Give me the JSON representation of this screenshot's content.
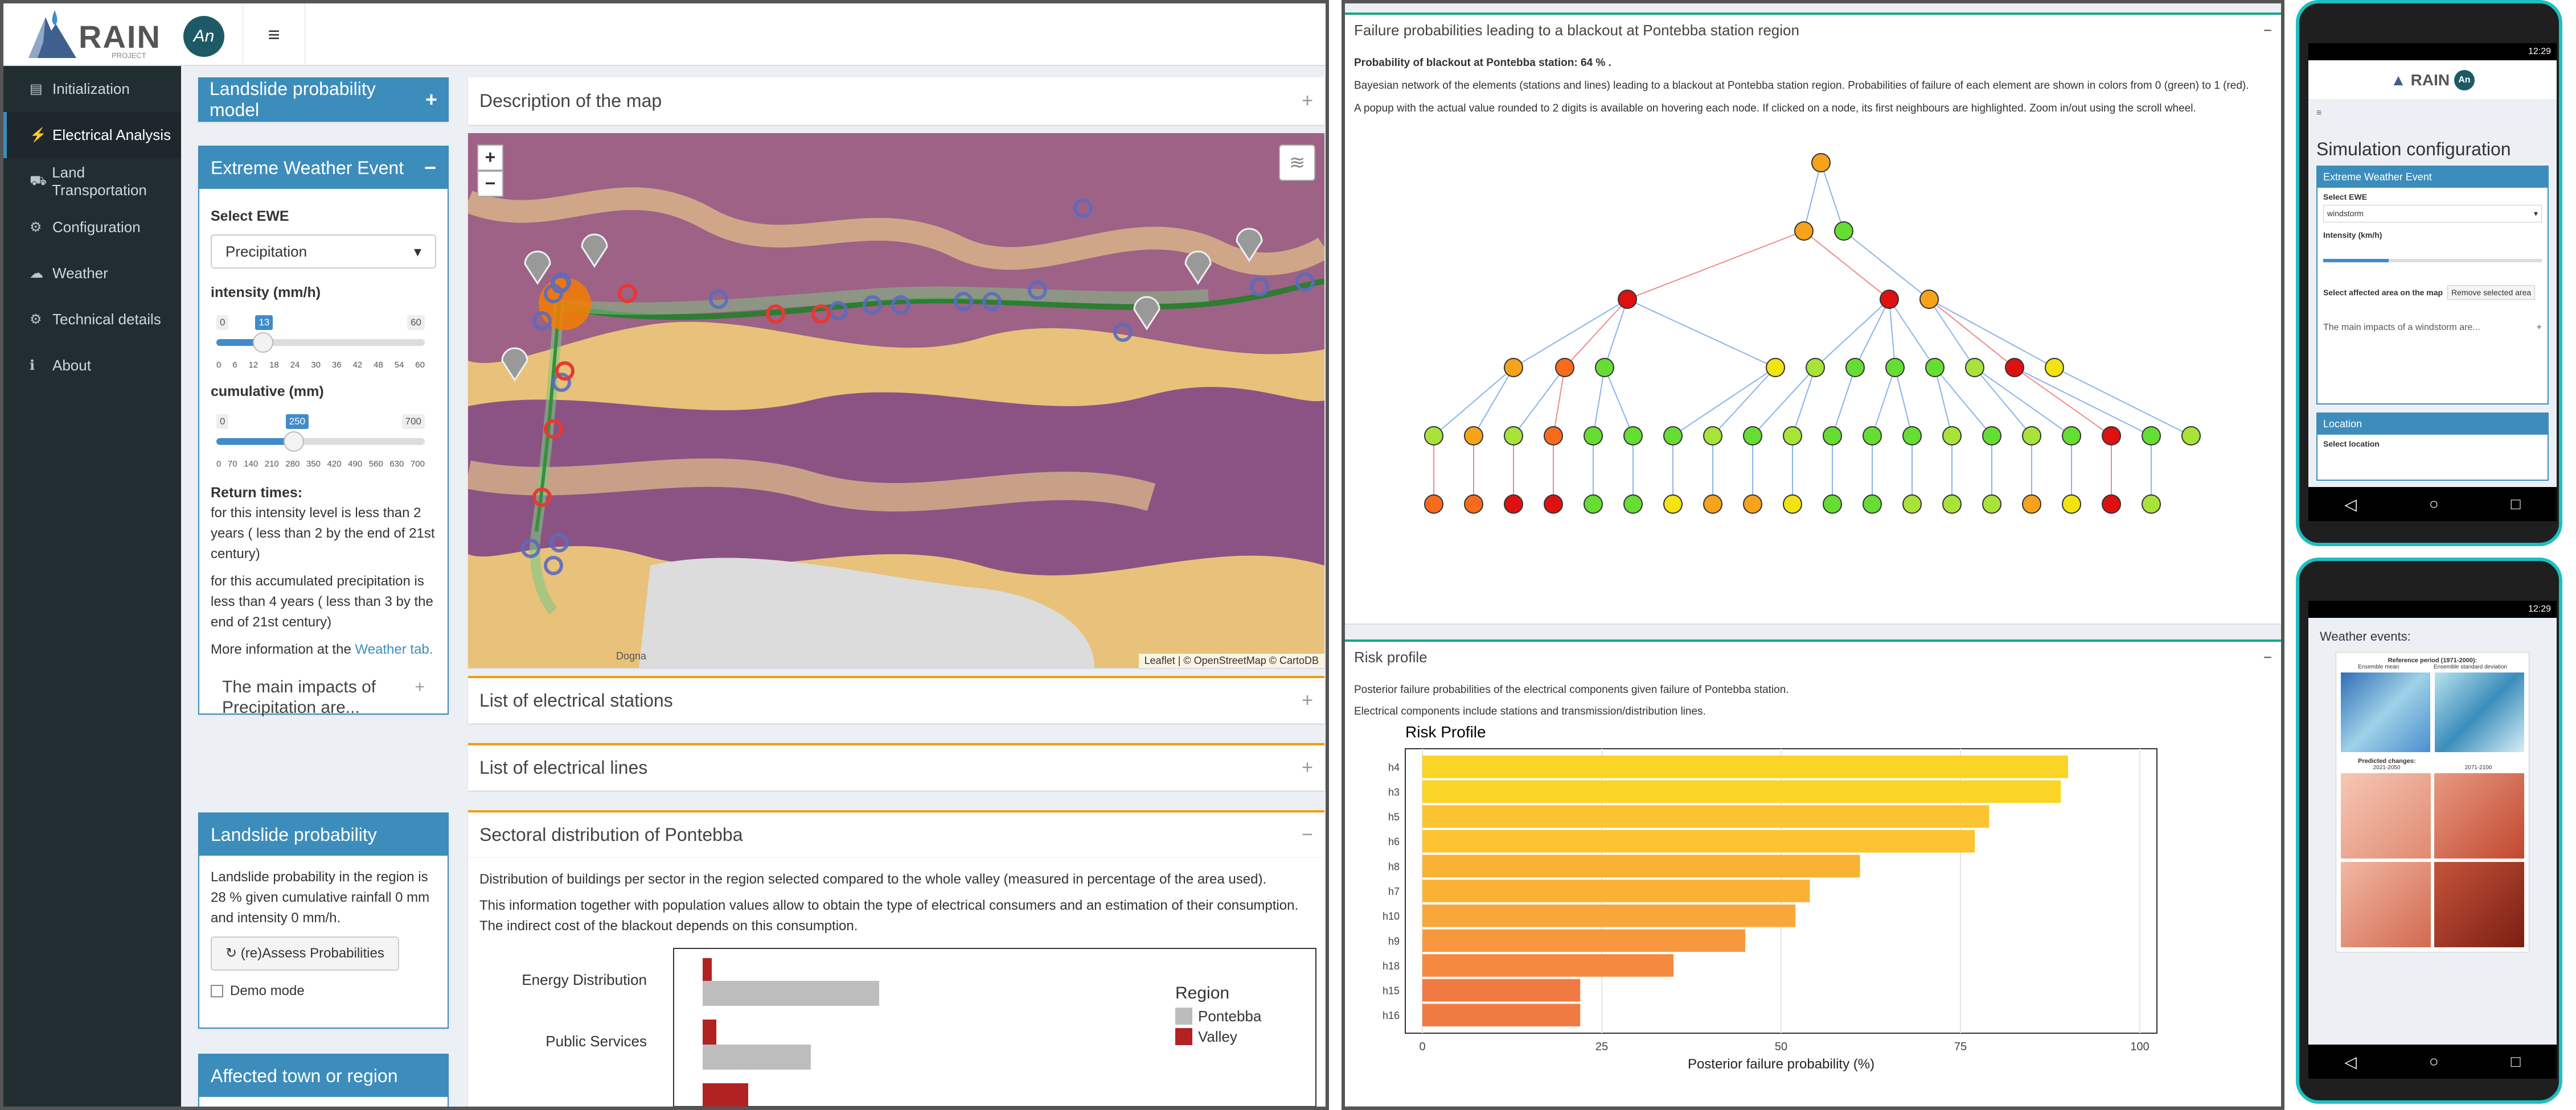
{
  "brand": {
    "name": "RAIN",
    "sub": "PROJECT",
    "badge": "An"
  },
  "sidebar": {
    "items": [
      {
        "icon": "▤",
        "label": "Initialization"
      },
      {
        "icon": "⚡",
        "label": "Electrical Analysis"
      },
      {
        "icon": "⛟",
        "label": "Land Transportation"
      },
      {
        "icon": "⚙",
        "label": "Configuration"
      },
      {
        "icon": "☁",
        "label": "Weather"
      },
      {
        "icon": "⚙",
        "label": "Technical details"
      },
      {
        "icon": "ℹ",
        "label": "About"
      }
    ]
  },
  "landslide_model": {
    "title": "Landslide probability model"
  },
  "ewe": {
    "title": "Extreme Weather Event",
    "select_label": "Select EWE",
    "select_value": "Precipitation",
    "intensity": {
      "label": "intensity (mm/h)",
      "min": "0",
      "max": "60",
      "value": "13",
      "ticks": [
        "0",
        "6",
        "12",
        "18",
        "24",
        "30",
        "36",
        "42",
        "48",
        "54",
        "60"
      ],
      "fraction": 0.217
    },
    "cumulative": {
      "label": "cumulative (mm)",
      "min": "0",
      "max": "700",
      "value": "250",
      "ticks": [
        "0",
        "70",
        "140",
        "210",
        "280",
        "350",
        "420",
        "490",
        "560",
        "630",
        "700"
      ],
      "fraction": 0.357
    },
    "return_title": "Return times:",
    "return_intensity": "for this intensity level is less than 2 years ( less than 2 by the end of 21st century)",
    "return_accum": "for this accumulated precipitation is less than 4 years ( less than 3 by the end of 21st century)",
    "more_info": "More information at the",
    "more_link": "Weather tab.",
    "impacts": "The main impacts of Precipitation are..."
  },
  "landslide": {
    "title": "Landslide probability",
    "text": "Landslide probability in the region is 28 % given cumulative rainfall 0 mm and intensity 0 mm/h.",
    "button": "(re)Assess Probabilities",
    "demo": "Demo mode"
  },
  "affected": {
    "title": "Affected town or region"
  },
  "description": {
    "title": "Description of the map"
  },
  "map": {
    "zoom_in": "+",
    "zoom_out": "−",
    "attribution": "Leaflet | © OpenStreetMap © CartoDB",
    "town": "Dogna"
  },
  "stations": {
    "title": "List of electrical stations"
  },
  "lines": {
    "title": "List of electrical lines"
  },
  "sectoral": {
    "title": "Sectoral distribution of Pontebba",
    "p1": "Distribution of buildings per sector in the region selected compared to the whole valley (measured in percentage of the area used).",
    "p2": "This information together with population values allow to obtain the type of electrical consumers and an estimation of their consumption. The indirect cost of the blackout depends on this consumption.",
    "legend_title": "Region",
    "legend": [
      {
        "name": "Pontebba",
        "color": "#bdbdbd"
      },
      {
        "name": "Valley",
        "color": "#b22222"
      }
    ],
    "categories": [
      "Energy Distribution",
      "Public Services"
    ]
  },
  "failure": {
    "title": "Failure probabilities leading to a blackout at Pontebba station region",
    "prob": "Probability of blackout at Pontebba station: 64 % .",
    "p1": "Bayesian network of the elements (stations and lines) leading to a blackout at Pontebba station region. Probabilities of failure of each element are shown in colors from 0 (green) to 1 (red).",
    "p2": "A popup with the actual value rounded to 2 digits is available on hovering each node. If clicked on a node, its first neighbours are highlighted. Zoom in/out using the scroll wheel."
  },
  "risk": {
    "title": "Risk profile",
    "p1": "Posterior failure probabilities of the electrical components given failure of Pontebba station.",
    "p2": "Electrical components include stations and transmission/distribution lines."
  },
  "chart_data": {
    "type": "bar",
    "title": "Risk Profile",
    "xlabel": "Posterior failure probability (%)",
    "ylabel": "",
    "categories": [
      "h4",
      "h3",
      "h5",
      "h6",
      "h8",
      "h7",
      "h10",
      "h9",
      "h18",
      "h15",
      "h16"
    ],
    "values": [
      90,
      89,
      79,
      77,
      61,
      54,
      52,
      45,
      35,
      22,
      22
    ],
    "xlim": [
      0,
      100
    ],
    "xticks": [
      "0",
      "25",
      "50",
      "75",
      "100"
    ],
    "colors": [
      "#fbd428",
      "#fbd428",
      "#fbc430",
      "#fbc430",
      "#f9b234",
      "#f9b234",
      "#f9a73a",
      "#f7983e",
      "#f5893f",
      "#f07b42",
      "#f07b42"
    ]
  },
  "phone1": {
    "time": "12:29",
    "title": "Simulation configuration",
    "ewe": "Extreme Weather Event",
    "select_label": "Select EWE",
    "select_value": "windstorm",
    "intensity": "Intensity (km/h)",
    "area_label": "Select affected area on the map",
    "remove": "Remove selected area",
    "impacts": "The main impacts of a windstorm are...",
    "location": "Location",
    "select_location": "Select location"
  },
  "phone2": {
    "time": "12:29",
    "title": "Weather events:",
    "ref": "Reference period (1971-2000):",
    "mean": "Ensemble mean",
    "sd": "Ensemble standard deviation",
    "pred": "Predicted changes:",
    "p1": "2021-2050",
    "p2": "2071-2100"
  }
}
